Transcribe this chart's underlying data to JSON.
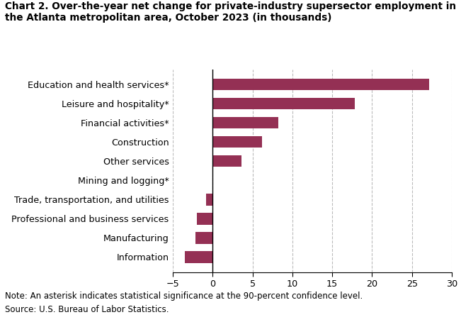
{
  "title_line1": "Chart 2. Over-the-year net change for private-industry supersector employment in",
  "title_line2": "the Atlanta metropolitan area, October 2023 (in thousands)",
  "categories": [
    "Information",
    "Manufacturing",
    "Professional and business services",
    "Trade, transportation, and utilities",
    "Mining and logging*",
    "Other services",
    "Construction",
    "Financial activities*",
    "Leisure and hospitality*",
    "Education and health services*"
  ],
  "values": [
    -3.5,
    -2.2,
    -2.0,
    -0.8,
    0.0,
    3.6,
    6.2,
    8.2,
    17.8,
    27.2
  ],
  "bar_color": "#943054",
  "xlim": [
    -5,
    30
  ],
  "xticks": [
    -5,
    0,
    5,
    10,
    15,
    20,
    25,
    30
  ],
  "note": "Note: An asterisk indicates statistical significance at the 90-percent confidence level.",
  "source": "Source: U.S. Bureau of Labor Statistics.",
  "grid_color": "#bbbbbb",
  "title_fontsize": 9.8,
  "label_fontsize": 9.2,
  "tick_fontsize": 9.2,
  "note_fontsize": 8.5
}
